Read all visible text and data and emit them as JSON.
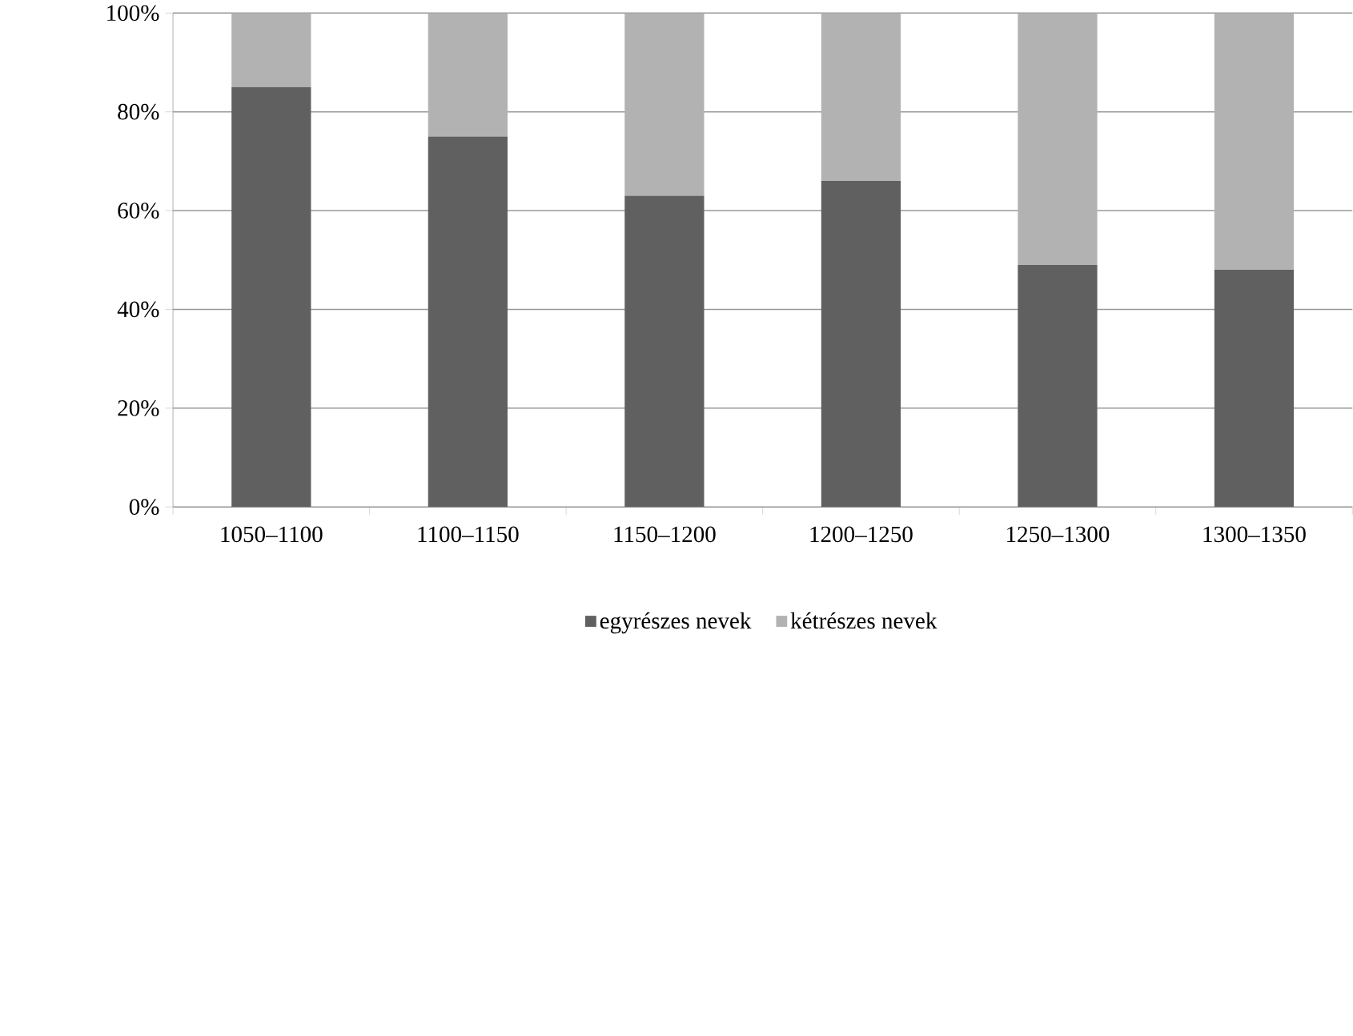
{
  "chart_data": {
    "type": "bar",
    "stacked": true,
    "categories": [
      "1050–1100",
      "1100–1150",
      "1150–1200",
      "1200–1250",
      "1250–1300",
      "1300–1350"
    ],
    "series": [
      {
        "name": "egyrészes nevek",
        "color": "#606060",
        "values": [
          85,
          75,
          63,
          66,
          49,
          48
        ]
      },
      {
        "name": "kétrészes nevek",
        "color": "#b2b2b2",
        "values": [
          15,
          25,
          37,
          34,
          51,
          52
        ]
      }
    ],
    "ylim": [
      0,
      100
    ],
    "yticks": [
      {
        "value": 0,
        "label": "0%"
      },
      {
        "value": 20,
        "label": "20%"
      },
      {
        "value": 40,
        "label": "40%"
      },
      {
        "value": 60,
        "label": "60%"
      },
      {
        "value": 80,
        "label": "80%"
      },
      {
        "value": 100,
        "label": "100%"
      }
    ],
    "grid": "y",
    "legend": "bottom"
  }
}
